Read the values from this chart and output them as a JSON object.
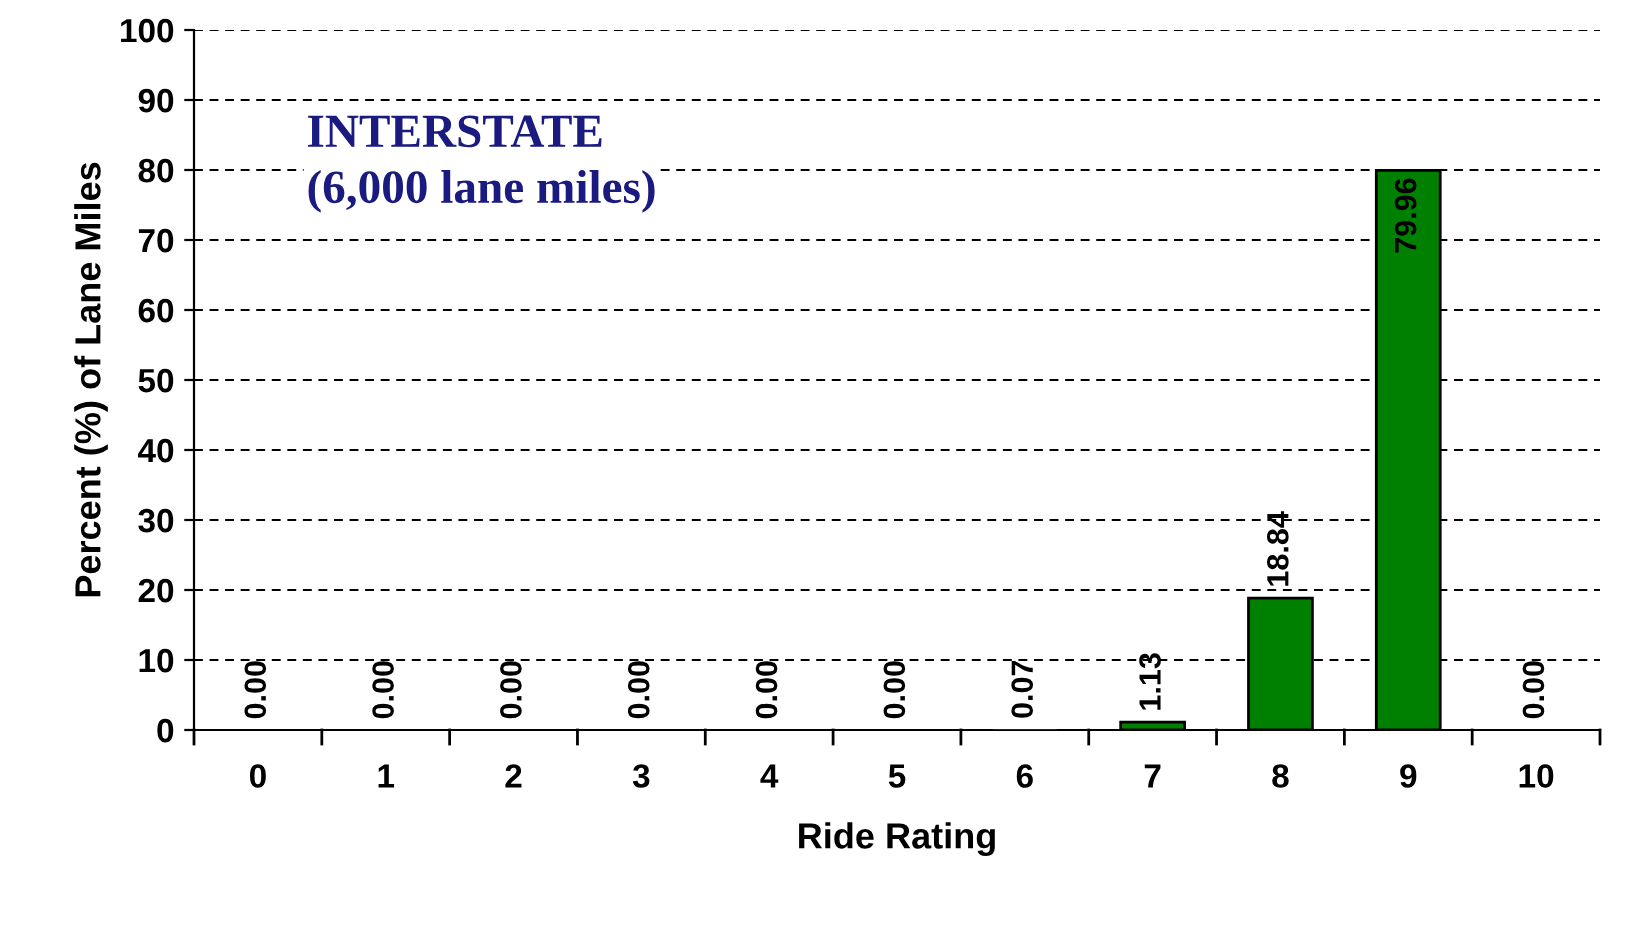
{
  "chart_data": {
    "type": "bar",
    "xlabel": "Ride Rating",
    "ylabel": "Percent (%) of Lane Miles",
    "categories": [
      "0",
      "1",
      "2",
      "3",
      "4",
      "5",
      "6",
      "7",
      "8",
      "9",
      "10"
    ],
    "values": [
      0.0,
      0.0,
      0.0,
      0.0,
      0.0,
      0.0,
      0.07,
      1.13,
      18.84,
      79.96,
      0.0
    ],
    "value_labels": [
      "0.00",
      "0.00",
      "0.00",
      "0.00",
      "0.00",
      "0.00",
      "0.07",
      "1.13",
      "18.84",
      "79.96",
      "0.00"
    ],
    "color": "#008000",
    "ylim": [
      0,
      100
    ],
    "yticks": [
      0,
      10,
      20,
      30,
      40,
      50,
      60,
      70,
      80,
      90,
      100
    ],
    "grid": "y",
    "annotations": [
      "INTERSTATE\n(6,000 lane miles)"
    ]
  }
}
